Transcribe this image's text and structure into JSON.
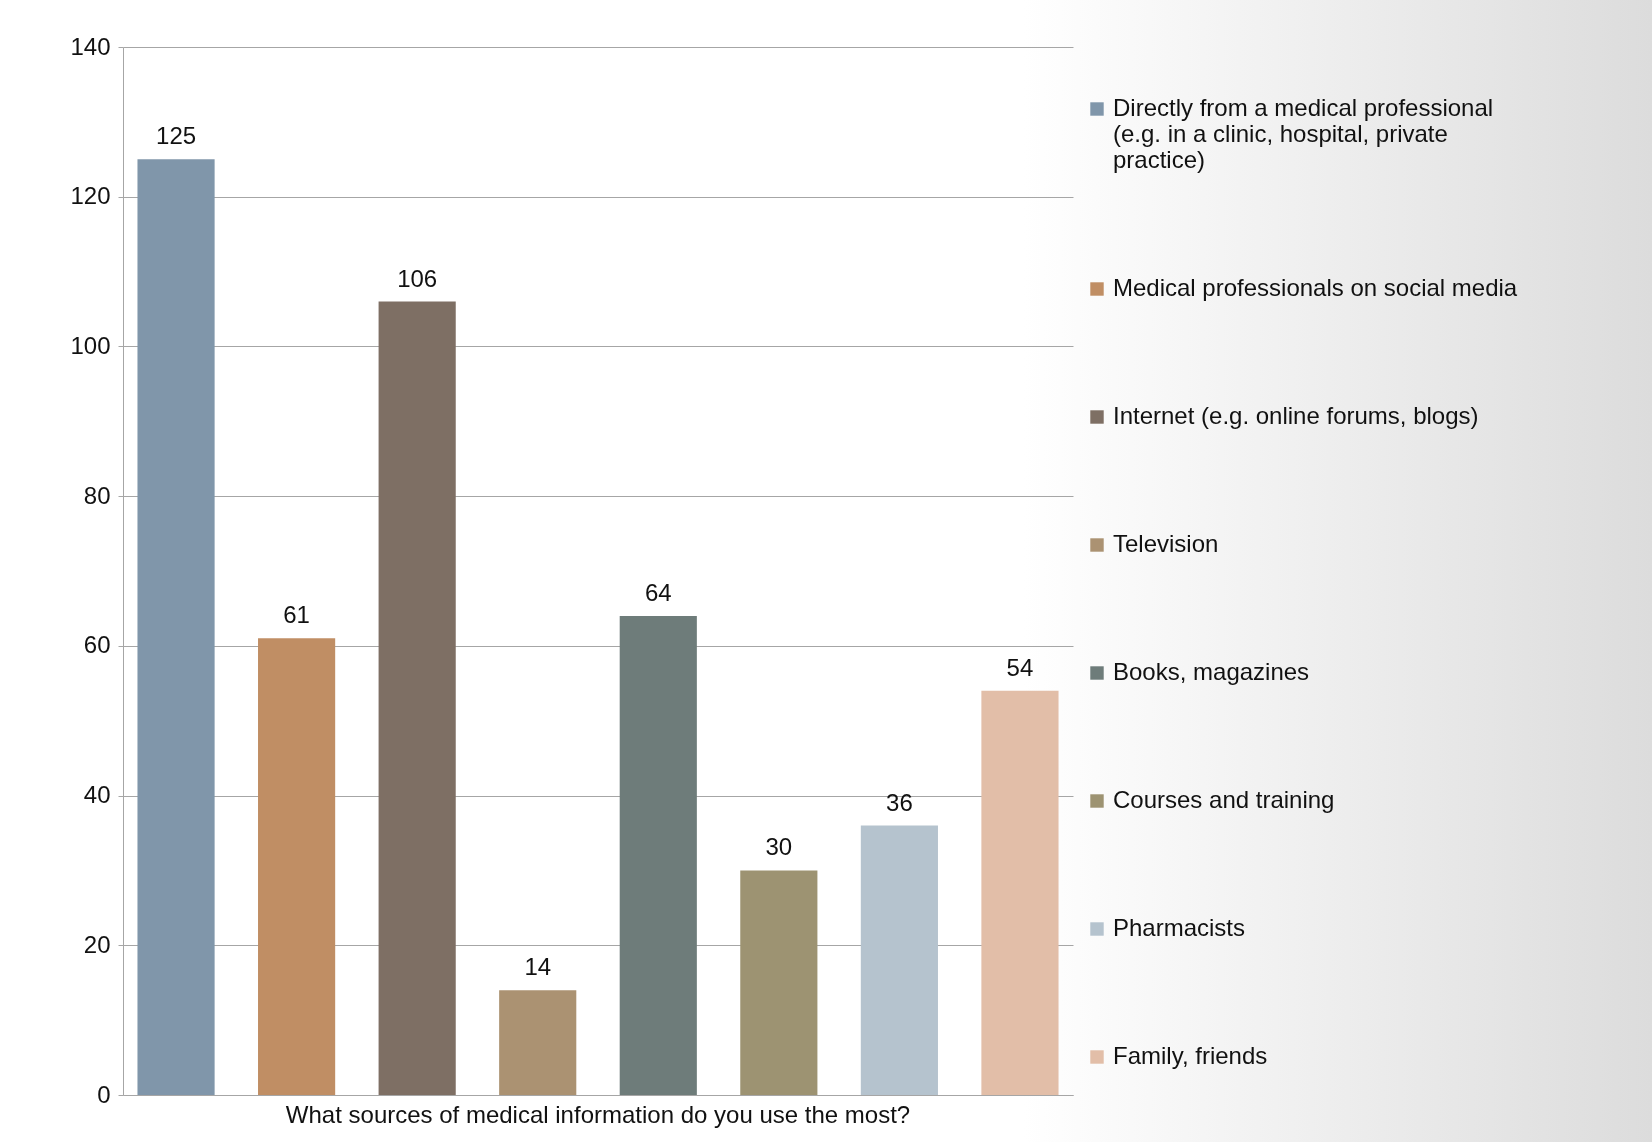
{
  "chart_data": {
    "type": "bar",
    "categories": [
      "What sources of medical information do you use the most?"
    ],
    "series": [
      {
        "name": "Directly from a medical professional (e.g. in a clinic, hospital, private practice)",
        "color": "#8096aa",
        "values": [
          125
        ]
      },
      {
        "name": "Medical professionals on social media",
        "color": "#c08e64",
        "values": [
          61
        ]
      },
      {
        "name": "Internet (e.g. online forums, blogs)",
        "color": "#7e6f64",
        "values": [
          106
        ]
      },
      {
        "name": "Television",
        "color": "#ab9272",
        "values": [
          14
        ]
      },
      {
        "name": "Books, magazines",
        "color": "#6e7c7a",
        "values": [
          64
        ]
      },
      {
        "name": "Courses and training",
        "color": "#9d9372",
        "values": [
          30
        ]
      },
      {
        "name": "Pharmacists",
        "color": "#b5c3ce",
        "values": [
          36
        ]
      },
      {
        "name": "Family, friends",
        "color": "#e2bea8",
        "values": [
          54
        ]
      }
    ],
    "ylim": [
      0,
      140
    ],
    "yticks": [
      0,
      20,
      40,
      60,
      80,
      100,
      120,
      140
    ],
    "grid": "y",
    "legend": "right",
    "data_labels": true
  }
}
